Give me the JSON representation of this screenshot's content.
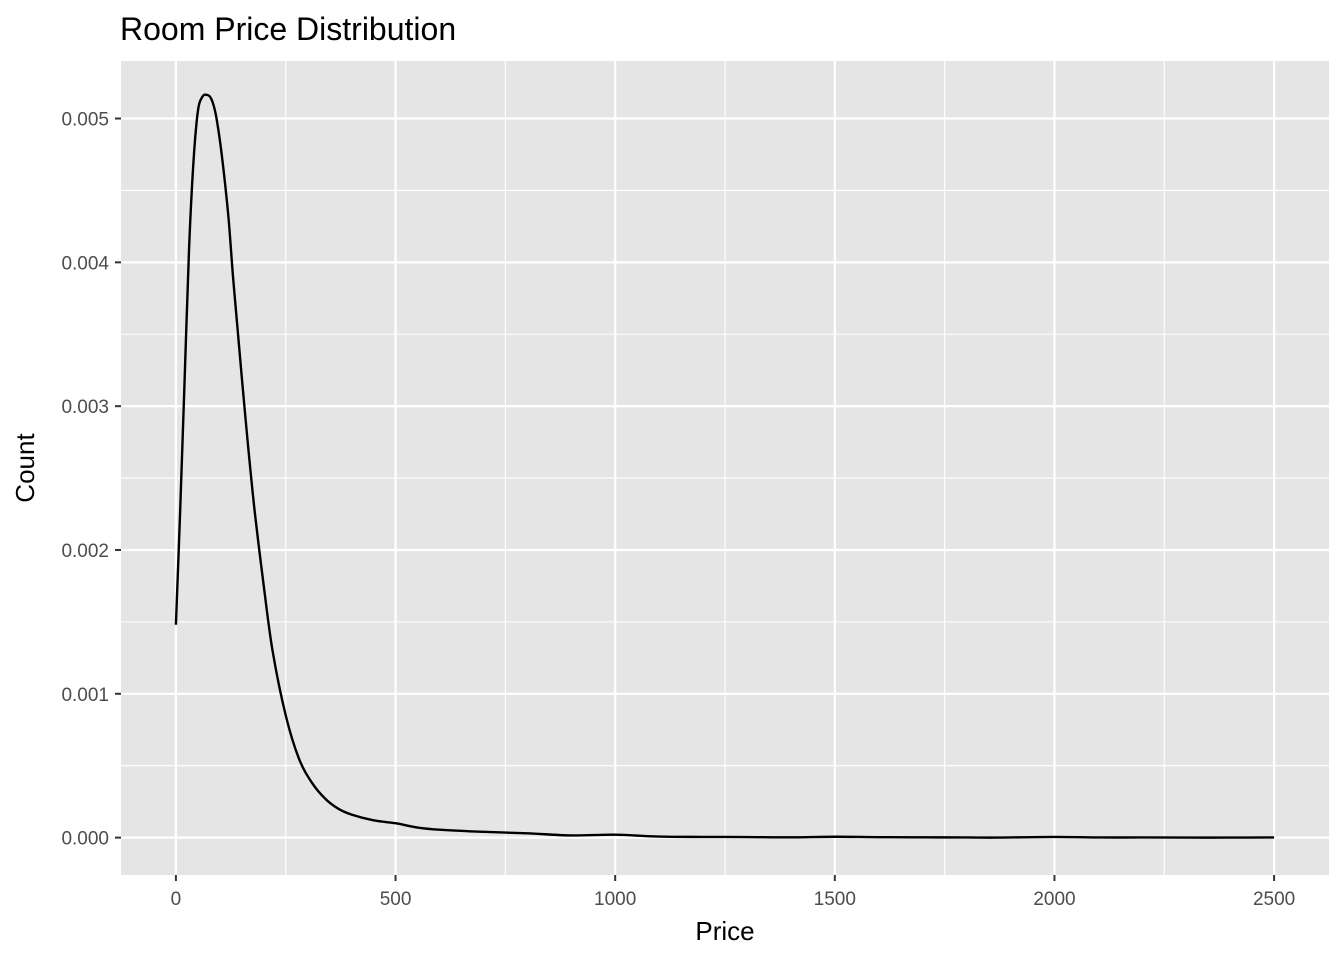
{
  "chart_data": {
    "type": "line",
    "title": "Room Price Distribution",
    "xlabel": "Price",
    "ylabel": "Count",
    "xlim": [
      -125,
      2625
    ],
    "ylim": [
      -0.00026,
      0.0054
    ],
    "x_major_ticks": [
      0,
      500,
      1000,
      1500,
      2000,
      2500
    ],
    "x_minor_ticks": [
      250,
      750,
      1250,
      1750,
      2250
    ],
    "y_major_ticks": [
      0.0,
      0.001,
      0.002,
      0.003,
      0.004,
      0.005
    ],
    "y_minor_ticks": [
      0.0005,
      0.0015,
      0.0025,
      0.0035,
      0.0045
    ],
    "x_tick_labels": [
      "0",
      "500",
      "1000",
      "1500",
      "2000",
      "2500"
    ],
    "y_tick_labels": [
      "0.000",
      "0.001",
      "0.002",
      "0.003",
      "0.004",
      "0.005"
    ],
    "grid": true,
    "legend": "none",
    "colors": {
      "panel": "#e5e5e5",
      "grid": "#ffffff",
      "line": "#000000",
      "tick_text": "#4d4d4d",
      "tick_mark": "#333333"
    },
    "series": [
      {
        "x": [
          0,
          10,
          20,
          30,
          40,
          50,
          60,
          70,
          80,
          90,
          100,
          110,
          120,
          130,
          140,
          150,
          165,
          180,
          200,
          220,
          250,
          280,
          310,
          340,
          370,
          400,
          450,
          500,
          550,
          600,
          700,
          800,
          900,
          1000,
          1100,
          1200,
          1300,
          1400,
          1500,
          1600,
          1700,
          1800,
          1870,
          2000,
          2100,
          2200,
          2300,
          2400,
          2500
        ],
        "y": [
          0.00148,
          0.0023,
          0.0032,
          0.0041,
          0.0047,
          0.00505,
          0.00515,
          0.005165,
          0.00514,
          0.00504,
          0.00485,
          0.0046,
          0.0043,
          0.0039,
          0.00355,
          0.0032,
          0.0027,
          0.00225,
          0.00175,
          0.0013,
          0.00085,
          0.00055,
          0.00038,
          0.00027,
          0.0002,
          0.00016,
          0.00012,
          0.0001,
          7e-05,
          5.5e-05,
          4e-05,
          3e-05,
          1.5e-05,
          2e-05,
          7e-06,
          5e-06,
          4e-06,
          2e-06,
          6e-06,
          3e-06,
          2e-06,
          1e-06,
          0.0,
          5e-06,
          1e-06,
          1e-06,
          0.0,
          0.0,
          1e-06
        ]
      }
    ]
  }
}
